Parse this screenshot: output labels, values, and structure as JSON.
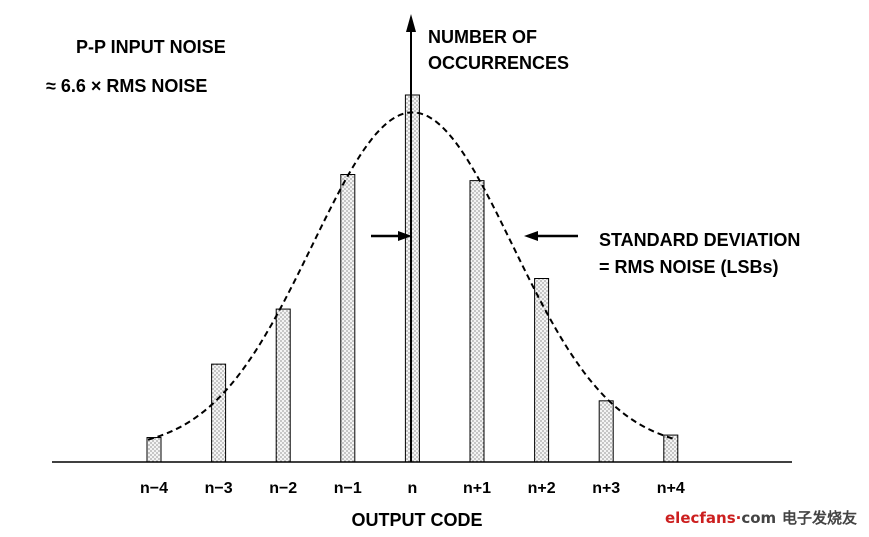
{
  "chart_data": {
    "type": "bar",
    "categories": [
      "n−4",
      "n−3",
      "n−2",
      "n−1",
      "n",
      "n+1",
      "n+2",
      "n+3",
      "n+4"
    ],
    "values": [
      2,
      8,
      12.5,
      23.5,
      30,
      23,
      15,
      5,
      2.2
    ],
    "curve_overlay": "normal-distribution-dashed",
    "xlabel": "OUTPUT CODE",
    "ylabel": "NUMBER OF\nOCCURRENCES",
    "grid": false
  },
  "annotations": {
    "pp_line1": "P-P INPUT NOISE",
    "pp_line2": "≈ 6.6 × RMS NOISE",
    "sd_line1": "STANDARD DEVIATION",
    "sd_line2": "= RMS NOISE (LSBs)"
  },
  "axis": {
    "y_line1": "NUMBER OF",
    "y_line2": "OCCURRENCES",
    "x_title": "OUTPUT CODE"
  },
  "watermark": {
    "brand": "elecfans",
    "dot": "·",
    "suffix": "com",
    "cn": "电子发烧友"
  },
  "colors": {
    "bar_fill": "#ebebeb",
    "ink": "#000000",
    "brand_red": "#cc1f1f"
  }
}
